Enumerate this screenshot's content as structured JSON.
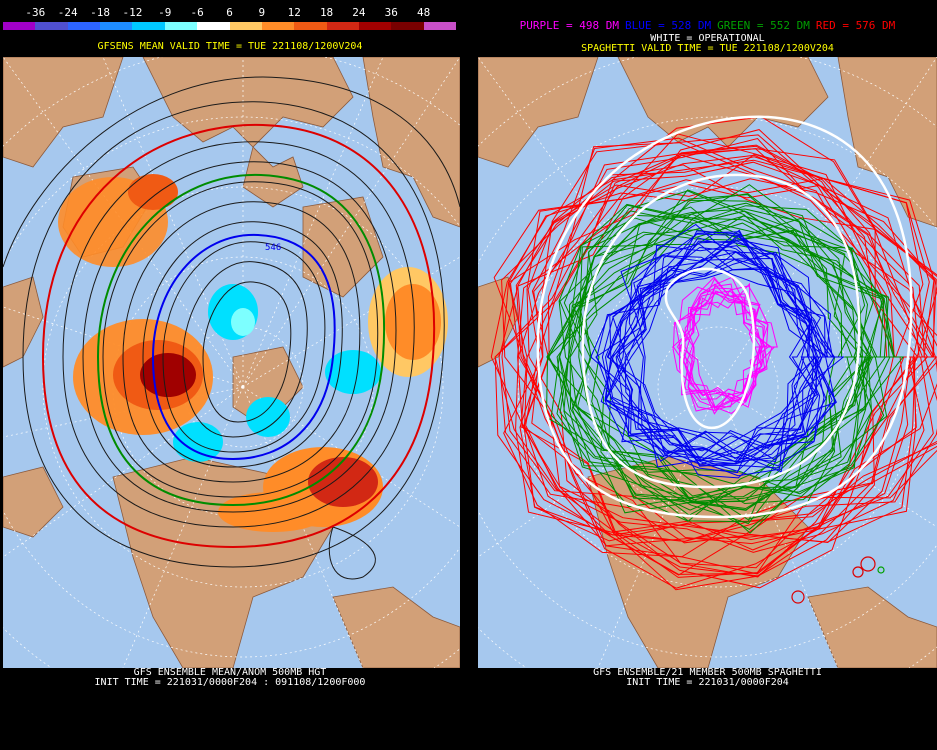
{
  "left": {
    "colorbar": {
      "labels": [
        "-36",
        "-24",
        "-18",
        "-12",
        "-9",
        "-6",
        "6",
        "9",
        "12",
        "18",
        "24",
        "36",
        "48"
      ],
      "colors": [
        "#a000c8",
        "#5050d0",
        "#2d64ff",
        "#1e8cff",
        "#00c8ff",
        "#7dffff",
        "#ffffff",
        "#ffc864",
        "#ff8c28",
        "#f05a14",
        "#d22814",
        "#a00000",
        "#780000",
        "#c850c8"
      ]
    },
    "title": "GFSENS MEAN VALID TIME = TUE 221108/1200V204",
    "footer1": "GFS ENSEMBLE MEAN/ANOM 500MB HGT",
    "footer2": "INIT TIME = 221031/0000F204 : 091108/1200F000",
    "contour_label": "546"
  },
  "right": {
    "legend": [
      {
        "text": "PURPLE = 498 DM",
        "color": "#ff00ff"
      },
      {
        "text": "BLUE = 528 DM",
        "color": "#0000ff"
      },
      {
        "text": "GREEN = 552 DM",
        "color": "#00a000"
      },
      {
        "text": "RED = 576 DM",
        "color": "#ff0000"
      }
    ],
    "operational": "WHITE = OPERATIONAL",
    "title": "SPAGHETTI VALID TIME = TUE 221108/1200V204",
    "footer1": "GFS ENSEMBLE/21 MEMBER 500MB SPAGHETTI",
    "footer2": "INIT TIME = 221031/0000F204"
  },
  "colors": {
    "ocean": "#a6c8ee",
    "land": "#d2a078",
    "grid": "#ffffff"
  }
}
